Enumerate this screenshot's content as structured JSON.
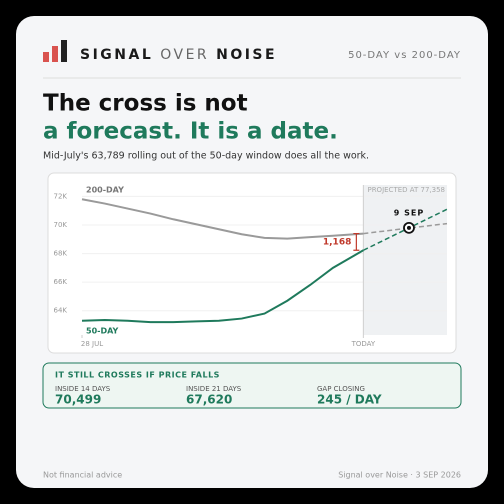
{
  "header": {
    "brand": [
      "SIGNAL",
      "OVER",
      "NOISE"
    ],
    "right": "50-DAY vs 200-DAY"
  },
  "headline": [
    "The cross is not",
    "a forecast. It is a date."
  ],
  "subtitle": "Mid-July's 63,789 rolling out of the 50-day window does all the work.",
  "chart_data": {
    "type": "line",
    "x": [
      0,
      3,
      6,
      9,
      12,
      15,
      18,
      21,
      24,
      27,
      30,
      33,
      37
    ],
    "xlim": [
      0,
      48
    ],
    "xticks": [
      {
        "value": 0,
        "label": "28 JUL"
      },
      {
        "value": 37,
        "label": "TODAY"
      }
    ],
    "ylim": [
      62300,
      72800
    ],
    "yticks": [
      {
        "value": 64000,
        "label": "64K"
      },
      {
        "value": 66000,
        "label": "66K"
      },
      {
        "value": 68000,
        "label": "68K"
      },
      {
        "value": 70000,
        "label": "70K"
      },
      {
        "value": 72000,
        "label": "72K"
      }
    ],
    "grid": true,
    "series": [
      {
        "name": "200-DAY",
        "color": "#9a9a9a",
        "values": [
          71800,
          71500,
          71150,
          70800,
          70400,
          70050,
          69700,
          69350,
          69100,
          69050,
          69150,
          69250,
          69400
        ],
        "projection": {
          "x": [
            37,
            48
          ],
          "values": [
            69400,
            70100
          ]
        }
      },
      {
        "name": "50-DAY",
        "color": "#1f7a5c",
        "values": [
          63300,
          63350,
          63300,
          63200,
          63200,
          63250,
          63300,
          63450,
          63800,
          64700,
          65800,
          67000,
          68232
        ],
        "projection": {
          "x": [
            37,
            48
          ],
          "values": [
            68232,
            71100
          ]
        }
      }
    ],
    "gap": {
      "value": 1168,
      "label": "1,168",
      "color": "#c0392b"
    },
    "cross": {
      "x": 43,
      "value": 69800,
      "label": "9 SEP"
    },
    "projection_note": "PROJECTED AT 77,358"
  },
  "stats": {
    "title": "IT STILL CROSSES IF PRICE FALLS",
    "items": [
      {
        "label": "INSIDE 14 DAYS",
        "value": "70,499"
      },
      {
        "label": "INSIDE 21 DAYS",
        "value": "67,620"
      },
      {
        "label": "GAP CLOSING",
        "value": "245 / DAY"
      }
    ]
  },
  "footer": {
    "left": "Not financial advice",
    "right": "Signal over Noise · 3 SEP 2026"
  }
}
